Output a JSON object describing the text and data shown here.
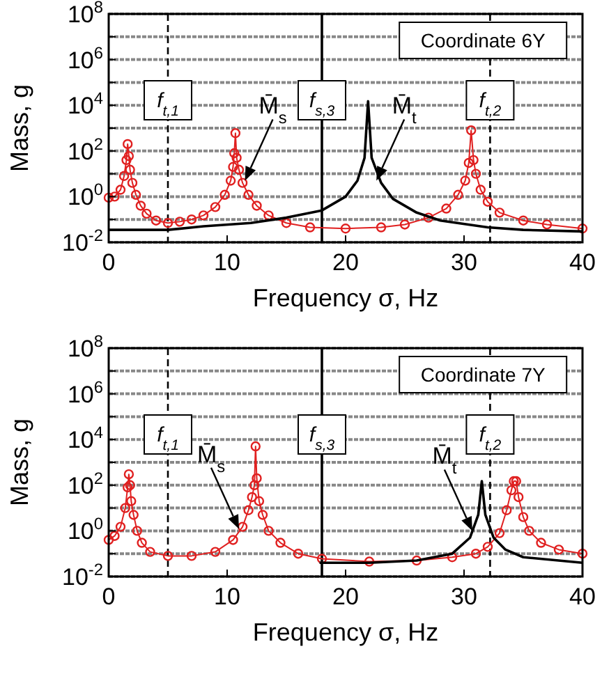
{
  "chart_data": [
    {
      "type": "line",
      "xlabel": "Frequency σ, Hz",
      "ylabel": "Mass, g",
      "log": "y",
      "grid": "y",
      "xlim": [
        0,
        40
      ],
      "xticks": [
        0,
        10,
        20,
        30,
        40
      ],
      "ylim": [
        0.01,
        100000000
      ],
      "yticks": [
        {
          "value": 0.01,
          "label": "10$^{-2}$"
        },
        {
          "value": 0.1,
          "label": null
        },
        {
          "value": 1,
          "label": "10$^{0}$"
        },
        {
          "value": 10,
          "label": null
        },
        {
          "value": 100,
          "label": "10$^{2}$"
        },
        {
          "value": 1000,
          "label": null
        },
        {
          "value": 10000,
          "label": "10$^{4}$"
        },
        {
          "value": 100000,
          "label": null
        },
        {
          "value": 1000000,
          "label": "10$^{6}$"
        },
        {
          "value": 10000000,
          "label": null
        },
        {
          "value": 100000000,
          "label": "10$^{8}$"
        }
      ],
      "series": [
        {
          "color": "#e02020",
          "marker": "circle",
          "x": [
            0,
            0.5,
            1,
            1.3,
            1.5,
            1.6,
            1.7,
            1.8,
            2,
            2.3,
            2.7,
            3.2,
            4,
            5,
            6,
            7,
            8,
            9,
            9.8,
            10.3,
            10.5,
            10.6,
            10.7,
            10.8,
            11,
            11.3,
            11.8,
            12.5,
            13.5,
            15,
            17,
            20,
            23,
            25,
            27,
            28.5,
            29.5,
            30.1,
            30.4,
            30.6,
            30.8,
            31,
            31.4,
            32,
            33,
            35,
            37,
            40
          ],
          "values": [
            0.9,
            1,
            2,
            8,
            40,
            200,
            60,
            15,
            4,
            1.2,
            0.4,
            0.18,
            0.09,
            0.07,
            0.08,
            0.1,
            0.15,
            0.35,
            1.2,
            5,
            20,
            80,
            600,
            50,
            15,
            4,
            1.2,
            0.4,
            0.15,
            0.07,
            0.045,
            0.04,
            0.045,
            0.06,
            0.12,
            0.3,
            1.2,
            5,
            30,
            800,
            40,
            10,
            2,
            0.6,
            0.2,
            0.09,
            0.06,
            0.04
          ]
        },
        {
          "color": "#000000",
          "marker": "none",
          "x": [
            0,
            5,
            8,
            12,
            15,
            18,
            20,
            21,
            21.6,
            21.9,
            22.2,
            23,
            24,
            26,
            28,
            32,
            35,
            40
          ],
          "values": [
            0.035,
            0.035,
            0.05,
            0.07,
            0.12,
            0.25,
            1,
            5,
            50,
            15000,
            50,
            4,
            0.8,
            0.2,
            0.09,
            0.045,
            0.035,
            0.03
          ]
        }
      ],
      "ref_lines": [
        {
          "axis": "x",
          "value": 5,
          "label": "f$_{t,1}$",
          "line_style": "dashed"
        },
        {
          "axis": "x",
          "value": 18,
          "label": "f$_{s,3}$",
          "line_style": "solid"
        },
        {
          "axis": "x",
          "value": 32.2,
          "label": "f$_{t,2}$",
          "line_style": "dashed"
        }
      ],
      "annotations": [
        "Coordinate 6Y",
        {
          "text": "M̄$_{s}$",
          "x": 11.5,
          "y": 5
        },
        {
          "text": "M̄$_{t}$",
          "x": 22.6,
          "y": 5
        }
      ]
    },
    {
      "type": "line",
      "xlabel": "Frequency σ, Hz",
      "ylabel": "Mass, g",
      "log": "y",
      "grid": "y",
      "xlim": [
        0,
        40
      ],
      "xticks": [
        0,
        10,
        20,
        30,
        40
      ],
      "ylim": [
        0.01,
        100000000
      ],
      "yticks": [
        {
          "value": 0.01,
          "label": "10$^{-2}$"
        },
        {
          "value": 0.1,
          "label": null
        },
        {
          "value": 1,
          "label": "10$^{0}$"
        },
        {
          "value": 10,
          "label": null
        },
        {
          "value": 100,
          "label": "10$^{2}$"
        },
        {
          "value": 1000,
          "label": null
        },
        {
          "value": 10000,
          "label": "10$^{4}$"
        },
        {
          "value": 100000,
          "label": null
        },
        {
          "value": 1000000,
          "label": "10$^{6}$"
        },
        {
          "value": 10000000,
          "label": null
        },
        {
          "value": 100000000,
          "label": "10$^{8}$"
        }
      ],
      "series": [
        {
          "color": "#e02020",
          "marker": "circle",
          "x": [
            0,
            0.5,
            1,
            1.4,
            1.6,
            1.7,
            1.8,
            1.9,
            2.1,
            2.4,
            2.8,
            3.5,
            5,
            7,
            9,
            10.5,
            11.3,
            11.8,
            12.1,
            12.3,
            12.4,
            12.5,
            12.7,
            13,
            13.5,
            14.5,
            16,
            18,
            22,
            26,
            29,
            31,
            32,
            33,
            33.6,
            34,
            34.2,
            34.4,
            34.6,
            35,
            35.5,
            36.5,
            38,
            40
          ],
          "values": [
            0.4,
            0.6,
            1.5,
            10,
            80,
            300,
            100,
            20,
            5,
            1,
            0.3,
            0.12,
            0.08,
            0.08,
            0.12,
            0.4,
            1.5,
            8,
            30,
            100,
            5000,
            200,
            20,
            5,
            1,
            0.3,
            0.1,
            0.06,
            0.045,
            0.05,
            0.07,
            0.1,
            0.2,
            0.8,
            8,
            60,
            150,
            150,
            30,
            4,
            1,
            0.3,
            0.15,
            0.1
          ]
        },
        {
          "color": "#000000",
          "marker": "none",
          "x": [
            17.8,
            22,
            26,
            29,
            30.5,
            31.2,
            31.5,
            31.8,
            32.5,
            33.5,
            35,
            40
          ],
          "values": [
            0.04,
            0.04,
            0.05,
            0.1,
            0.5,
            5,
            150,
            5,
            0.5,
            0.15,
            0.07,
            0.04
          ]
        }
      ],
      "ref_lines": [
        {
          "axis": "x",
          "value": 5,
          "label": "f$_{t,1}$",
          "line_style": "dashed"
        },
        {
          "axis": "x",
          "value": 18,
          "label": "f$_{s,3}$",
          "line_style": "solid"
        },
        {
          "axis": "x",
          "value": 32.2,
          "label": "f$_{t,2}$",
          "line_style": "dashed"
        }
      ],
      "annotations": [
        "Coordinate 7Y",
        {
          "text": "M̄$_{s}$",
          "x": 11,
          "y": 1.2
        },
        {
          "text": "M̄$_{t}$",
          "x": 30.7,
          "y": 1
        }
      ]
    }
  ]
}
